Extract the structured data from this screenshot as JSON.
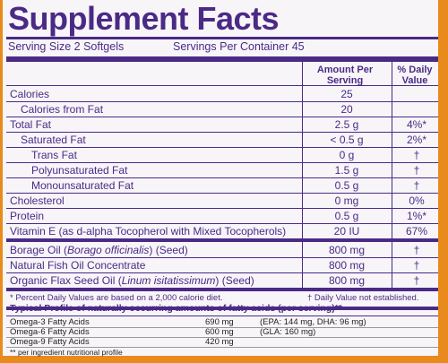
{
  "title": "Supplement Facts",
  "serving_size": "Serving Size 2 Softgels",
  "servings_per_container": "Servings Per Container 45",
  "table": {
    "headers": [
      "Amount Per Serving",
      "% Daily Value"
    ],
    "sections": [
      [
        {
          "name": "Calories",
          "amount": "25"
        },
        {
          "name": "Calories from Fat",
          "amount": "20",
          "indent": 1
        },
        {
          "name": "Total Fat",
          "amount": "2.5 g",
          "dv": "4%*"
        },
        {
          "name": "Saturated Fat",
          "amount": "< 0.5 g",
          "dv": "2%*",
          "indent": 1
        },
        {
          "name": "Trans Fat",
          "amount": "0 g",
          "dv": "†",
          "indent": 2
        },
        {
          "name": "Polyunsaturated Fat",
          "amount": "1.5 g",
          "dv": "†",
          "indent": 2
        },
        {
          "name": "Monounsaturated Fat",
          "amount": "0.5 g",
          "dv": "†",
          "indent": 2
        },
        {
          "name": "Cholesterol",
          "amount": "0 mg",
          "dv": "0%"
        },
        {
          "name": "Protein",
          "amount": "0.5 g",
          "dv": "1%*"
        },
        {
          "name": "Vitamin E (as d-alpha Tocopherol with Mixed Tocopherols)",
          "amount": "20 IU",
          "dv": "67%"
        }
      ],
      [
        {
          "name": [
            {
              "text": "Borage Oil ("
            },
            {
              "text": "Borago officinalis",
              "italic": true
            },
            {
              "text": ") (Seed)"
            }
          ],
          "amount": "800 mg",
          "dv": "†"
        },
        {
          "name": "Natural Fish Oil Concentrate",
          "amount": "800 mg",
          "dv": "†"
        },
        {
          "name": [
            {
              "text": "Organic Flax Seed Oil ("
            },
            {
              "text": "Linum isitatissimum",
              "italic": true
            },
            {
              "text": ") (Seed)"
            }
          ],
          "amount": "800 mg",
          "dv": "†"
        }
      ]
    ]
  },
  "footnotes": [
    "* Percent Daily Values are based on a 2,000 calorie diet.",
    "† Daily Value not established."
  ],
  "profile": {
    "title": "Typical Profile of naturally occurring amounts of fatty acids (per serving)**",
    "rows": [
      [
        "Omega-3 Fatty Acids",
        "690 mg",
        "(EPA: 144 mg, DHA: 96 mg)"
      ],
      [
        "Omega-6 Fatty Acids",
        "600 mg",
        "(GLA: 160 mg)"
      ],
      [
        "Omega-9 Fatty Acids",
        "420 mg"
      ]
    ],
    "footnote": "** per ingredient nutritional profile"
  }
}
